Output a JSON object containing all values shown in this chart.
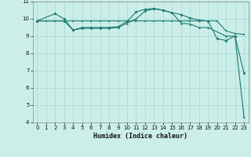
{
  "xlabel": "Humidex (Indice chaleur)",
  "background_color": "#cceee8",
  "grid_color": "#aaddda",
  "line_color": "#1a7a6e",
  "xlim": [
    -0.5,
    23.5
  ],
  "ylim": [
    4,
    11
  ],
  "xticks": [
    0,
    1,
    2,
    3,
    4,
    5,
    6,
    7,
    8,
    9,
    10,
    11,
    12,
    13,
    14,
    15,
    16,
    17,
    18,
    19,
    20,
    21,
    22,
    23
  ],
  "yticks": [
    4,
    5,
    6,
    7,
    8,
    9,
    10,
    11
  ],
  "line1_x": [
    0,
    1,
    2,
    3,
    4,
    5,
    6,
    7,
    8,
    9,
    10,
    11,
    12,
    13,
    14,
    15,
    16,
    17,
    18,
    19,
    20,
    21,
    22,
    23
  ],
  "line1_y": [
    9.88,
    9.88,
    9.88,
    9.88,
    9.88,
    9.88,
    9.88,
    9.88,
    9.88,
    9.88,
    9.88,
    9.88,
    9.88,
    9.88,
    9.88,
    9.88,
    9.88,
    9.88,
    9.88,
    9.88,
    9.88,
    9.3,
    9.15,
    9.1
  ],
  "line2_x": [
    0,
    2,
    3,
    4,
    5,
    6,
    7,
    8,
    9,
    10,
    11,
    12,
    13,
    14,
    15,
    16,
    17,
    18,
    19,
    20,
    21,
    22,
    23
  ],
  "line2_y": [
    9.88,
    10.3,
    10.0,
    9.35,
    9.5,
    9.5,
    9.5,
    9.5,
    9.55,
    9.85,
    10.4,
    10.55,
    10.6,
    10.5,
    10.35,
    10.25,
    10.05,
    9.93,
    9.88,
    8.85,
    8.75,
    9.0,
    6.85
  ],
  "line3_x": [
    0,
    3,
    4,
    5,
    6,
    7,
    8,
    9,
    10,
    11,
    12,
    13,
    14,
    15,
    16,
    17,
    18,
    19,
    21,
    22,
    23
  ],
  "line3_y": [
    9.88,
    9.88,
    9.35,
    9.45,
    9.45,
    9.45,
    9.45,
    9.5,
    9.75,
    10.0,
    10.45,
    10.58,
    10.5,
    10.35,
    9.75,
    9.7,
    9.5,
    9.5,
    9.0,
    9.0,
    4.3
  ]
}
